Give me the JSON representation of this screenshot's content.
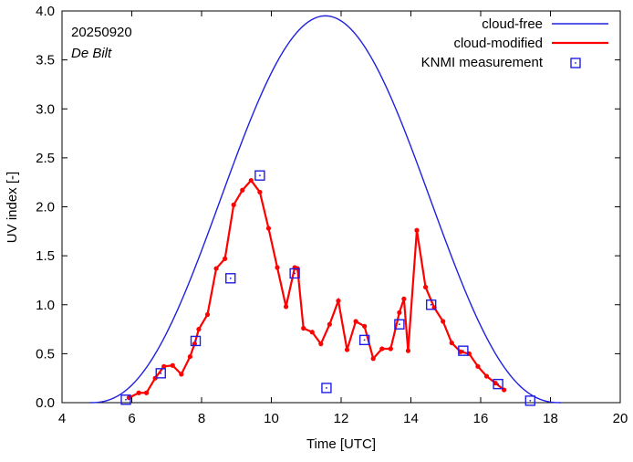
{
  "chart_data": {
    "type": "line",
    "xlabel": "Time  [UTC]",
    "ylabel": "UV index  [-]",
    "xlim": [
      4,
      20
    ],
    "ylim": [
      0,
      4
    ],
    "x_ticks": [
      4,
      6,
      8,
      10,
      12,
      14,
      16,
      18,
      20
    ],
    "x_tick_labels": [
      "4",
      "6",
      "8",
      "10",
      "12",
      "14",
      "16",
      "18",
      "20"
    ],
    "y_ticks": [
      0,
      0.5,
      1,
      1.5,
      2,
      2.5,
      3,
      3.5,
      4
    ],
    "y_tick_labels": [
      "0.0",
      "0.5",
      "1.0",
      "1.5",
      "2.0",
      "2.5",
      "3.0",
      "3.5",
      "4.0"
    ],
    "annotations": {
      "date": "20250920",
      "station": "De Bilt"
    },
    "legend_position": "top-right",
    "colors": {
      "cloud_free": "#2020e0",
      "cloud_modified": "#ff0000",
      "measurement": "#1e1ee6"
    },
    "cloud_free": {
      "label": "cloud-free",
      "peak_x": 11.55,
      "peak_y": 3.95,
      "start_x": 4.8,
      "end_x": 18.3
    },
    "cloud_modified": {
      "label": "cloud-modified",
      "x": [
        5.92,
        6.2,
        6.42,
        6.67,
        6.92,
        7.17,
        7.42,
        7.67,
        7.8,
        7.92,
        8.17,
        8.42,
        8.67,
        8.92,
        9.17,
        9.42,
        9.67,
        9.92,
        10.17,
        10.42,
        10.67,
        10.75,
        10.92,
        11.17,
        11.42,
        11.67,
        11.92,
        12.17,
        12.42,
        12.67,
        12.92,
        13.17,
        13.42,
        13.67,
        13.8,
        13.92,
        14.17,
        14.42,
        14.67,
        14.92,
        15.17,
        15.42,
        15.67,
        15.92,
        16.17,
        16.42,
        16.67
      ],
      "y": [
        0.05,
        0.1,
        0.1,
        0.25,
        0.37,
        0.38,
        0.29,
        0.47,
        0.6,
        0.75,
        0.9,
        1.37,
        1.47,
        2.02,
        2.17,
        2.27,
        2.15,
        1.78,
        1.38,
        0.98,
        1.38,
        1.37,
        0.76,
        0.72,
        0.6,
        0.8,
        1.04,
        0.54,
        0.83,
        0.78,
        0.45,
        0.55,
        0.55,
        0.92,
        1.06,
        0.53,
        1.76,
        1.18,
        0.97,
        0.83,
        0.61,
        0.52,
        0.5,
        0.37,
        0.27,
        0.2,
        0.13
      ]
    },
    "measurement": {
      "label": "KNMI measurement",
      "x": [
        5.83,
        6.83,
        7.83,
        8.83,
        9.67,
        10.67,
        11.58,
        12.67,
        13.67,
        14.58,
        15.5,
        16.5,
        17.42
      ],
      "y": [
        0.03,
        0.3,
        0.63,
        1.27,
        2.32,
        1.32,
        0.15,
        0.64,
        0.8,
        1.0,
        0.53,
        0.19,
        0.02
      ]
    }
  }
}
